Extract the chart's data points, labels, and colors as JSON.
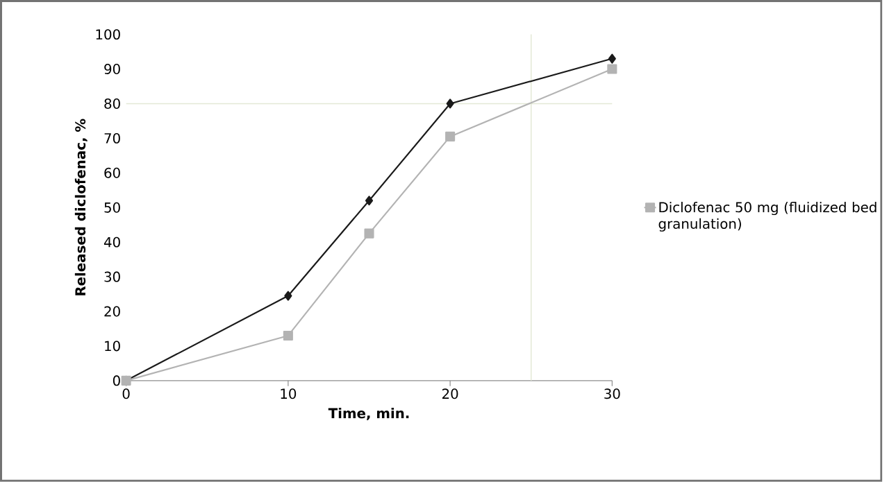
{
  "chart_data": {
    "type": "line",
    "xlabel": "Time, min.",
    "ylabel": "Released diclofenac, %",
    "x": [
      0,
      10,
      15,
      20,
      30
    ],
    "series": [
      {
        "color": "#1a1a1a",
        "marker": "diamond",
        "values": [
          0,
          24.5,
          52,
          80,
          93
        ]
      },
      {
        "name": "Diclofenac 50 mg (fluidized bed granulation)",
        "color": "#b3b3b3",
        "marker": "square",
        "values": [
          0,
          13,
          42.5,
          70.5,
          90
        ]
      }
    ],
    "xlim": [
      0,
      30
    ],
    "xticks": [
      0,
      10,
      20,
      30
    ],
    "ylim": [
      0,
      100
    ],
    "yticks": [
      0,
      10,
      20,
      30,
      40,
      50,
      60,
      70,
      80,
      90,
      100
    ],
    "ref_lines": [
      {
        "axis": "y",
        "value": 80,
        "color": "#e3e8d5"
      },
      {
        "axis": "x",
        "value": 25,
        "color": "#e3e8d5"
      }
    ],
    "grid": false,
    "legend": "right",
    "line_style": "solid"
  }
}
